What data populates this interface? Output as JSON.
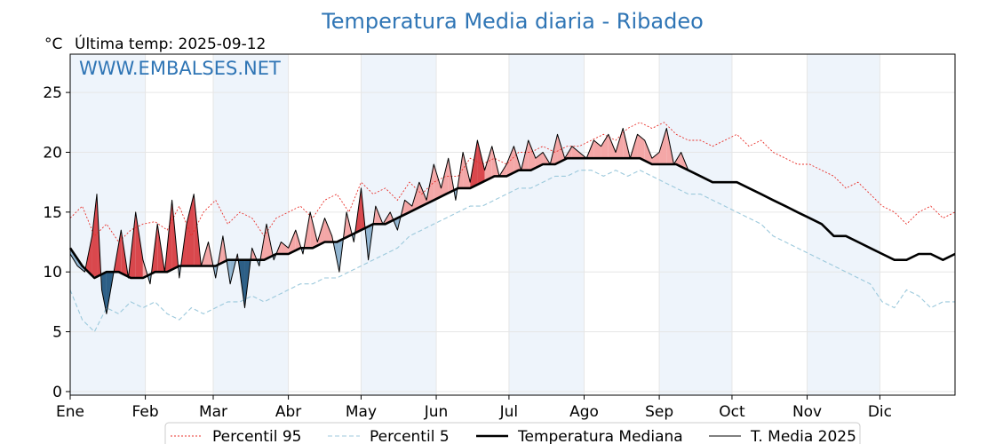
{
  "page": {
    "title": "Temperatura Media diaria - Ribadeo",
    "unit_label": "°C",
    "last_temp_label": "Última temp: 2025-09-12",
    "watermark": "WWW.EMBALSES.NET"
  },
  "colors": {
    "title": "#2f75b5",
    "percentile95": "#e8302a",
    "percentile5": "#9cc9dc",
    "median": "#000000",
    "mean2025": "#000000",
    "above_fill": "#f4a7a7",
    "above_fill_strong": "#d9484d",
    "below_fill": "#8fb3cf",
    "below_fill_strong": "#2d5f86",
    "band_fill": "#eef4fb"
  },
  "chart_data": {
    "type": "line",
    "title": "Temperatura Media diaria - Ribadeo",
    "ylabel": "°C",
    "ylim": [
      -0.3,
      28.2
    ],
    "yticks": [
      0,
      5,
      10,
      15,
      20,
      25
    ],
    "xlim": [
      0,
      365
    ],
    "months": [
      {
        "label": "Ene",
        "start": 0
      },
      {
        "label": "Feb",
        "start": 31
      },
      {
        "label": "Mar",
        "start": 59
      },
      {
        "label": "Abr",
        "start": 90
      },
      {
        "label": "May",
        "start": 120
      },
      {
        "label": "Jun",
        "start": 151
      },
      {
        "label": "Jul",
        "start": 181
      },
      {
        "label": "Ago",
        "start": 212
      },
      {
        "label": "Sep",
        "start": 243
      },
      {
        "label": "Oct",
        "start": 273
      },
      {
        "label": "Nov",
        "start": 304
      },
      {
        "label": "Dic",
        "start": 334
      }
    ],
    "shaded_bands": [
      [
        0,
        31
      ],
      [
        59,
        90
      ],
      [
        120,
        151
      ],
      [
        181,
        212
      ],
      [
        243,
        273
      ],
      [
        304,
        334
      ]
    ],
    "grid": true,
    "legend_position": "bottom-center",
    "series_legend": [
      {
        "name": "Percentil 95",
        "style": "dotted-red"
      },
      {
        "name": "Percentil 5",
        "style": "dashed-lightblue"
      },
      {
        "name": "Temperatura Mediana",
        "style": "solid-black-thick"
      },
      {
        "name": "T. Media 2025",
        "style": "solid-black-thin"
      }
    ],
    "series": [
      {
        "name": "Percentil 95",
        "x": [
          0,
          5,
          10,
          15,
          20,
          25,
          30,
          35,
          40,
          45,
          50,
          55,
          60,
          65,
          70,
          75,
          80,
          85,
          90,
          95,
          100,
          105,
          110,
          115,
          120,
          125,
          130,
          135,
          140,
          145,
          150,
          155,
          160,
          165,
          170,
          175,
          180,
          185,
          190,
          195,
          200,
          205,
          210,
          215,
          220,
          225,
          230,
          235,
          240,
          245,
          250,
          255,
          260,
          265,
          270,
          275,
          280,
          285,
          290,
          295,
          300,
          305,
          310,
          315,
          320,
          325,
          330,
          335,
          340,
          345,
          350,
          355,
          360,
          365
        ],
        "y": [
          14.5,
          15.5,
          13.0,
          14.0,
          12.5,
          13.5,
          14.0,
          14.2,
          13.5,
          15.5,
          13.0,
          15.0,
          16.0,
          14.0,
          15.0,
          14.5,
          13.0,
          14.5,
          15.0,
          15.5,
          14.5,
          16.0,
          16.5,
          15.0,
          17.5,
          16.5,
          17.0,
          16.0,
          17.5,
          16.5,
          17.5,
          18.0,
          18.0,
          19.5,
          19.0,
          19.5,
          19.0,
          20.0,
          20.0,
          20.5,
          20.0,
          20.5,
          20.5,
          21.0,
          21.5,
          21.0,
          22.0,
          22.5,
          22.0,
          22.5,
          21.5,
          21.0,
          21.0,
          20.5,
          21.0,
          21.5,
          20.5,
          21.0,
          20.0,
          19.5,
          19.0,
          19.0,
          18.5,
          18.0,
          17.0,
          17.5,
          16.5,
          15.5,
          15.0,
          14.0,
          15.0,
          15.5,
          14.5,
          15.0
        ]
      },
      {
        "name": "Percentil 5",
        "x": [
          0,
          5,
          10,
          15,
          20,
          25,
          30,
          35,
          40,
          45,
          50,
          55,
          60,
          65,
          70,
          75,
          80,
          85,
          90,
          95,
          100,
          105,
          110,
          115,
          120,
          125,
          130,
          135,
          140,
          145,
          150,
          155,
          160,
          165,
          170,
          175,
          180,
          185,
          190,
          195,
          200,
          205,
          210,
          215,
          220,
          225,
          230,
          235,
          240,
          245,
          250,
          255,
          260,
          265,
          270,
          275,
          280,
          285,
          290,
          295,
          300,
          305,
          310,
          315,
          320,
          325,
          330,
          335,
          340,
          345,
          350,
          355,
          360,
          365
        ],
        "y": [
          8.5,
          6.0,
          5.0,
          7.0,
          6.5,
          7.5,
          7.0,
          7.5,
          6.5,
          6.0,
          7.0,
          6.5,
          7.0,
          7.5,
          7.5,
          8.0,
          7.5,
          8.0,
          8.5,
          9.0,
          9.0,
          9.5,
          9.5,
          10.0,
          10.5,
          11.0,
          11.5,
          12.0,
          13.0,
          13.5,
          14.0,
          14.5,
          15.0,
          15.5,
          15.5,
          16.0,
          16.5,
          17.0,
          17.0,
          17.5,
          18.0,
          18.0,
          18.5,
          18.5,
          18.0,
          18.5,
          18.0,
          18.5,
          18.0,
          17.5,
          17.0,
          16.5,
          16.5,
          16.0,
          15.5,
          15.0,
          14.5,
          14.0,
          13.0,
          12.5,
          12.0,
          11.5,
          11.0,
          10.5,
          10.0,
          9.5,
          9.0,
          7.5,
          7.0,
          8.5,
          8.0,
          7.0,
          7.5,
          7.5
        ]
      },
      {
        "name": "Temperatura Mediana",
        "x": [
          0,
          5,
          10,
          15,
          20,
          25,
          30,
          35,
          40,
          45,
          50,
          55,
          60,
          65,
          70,
          75,
          80,
          85,
          90,
          95,
          100,
          105,
          110,
          115,
          120,
          125,
          130,
          135,
          140,
          145,
          150,
          155,
          160,
          165,
          170,
          175,
          180,
          185,
          190,
          195,
          200,
          205,
          210,
          215,
          220,
          225,
          230,
          235,
          240,
          245,
          250,
          255,
          260,
          265,
          270,
          275,
          280,
          285,
          290,
          295,
          300,
          305,
          310,
          315,
          320,
          325,
          330,
          335,
          340,
          345,
          350,
          355,
          360,
          365
        ],
        "y": [
          12.0,
          10.5,
          9.5,
          10.0,
          10.0,
          9.5,
          9.5,
          10.0,
          10.0,
          10.5,
          10.5,
          10.5,
          10.5,
          11.0,
          11.0,
          11.0,
          11.0,
          11.5,
          11.5,
          12.0,
          12.0,
          12.5,
          12.5,
          13.0,
          13.5,
          14.0,
          14.0,
          14.5,
          15.0,
          15.5,
          16.0,
          16.5,
          17.0,
          17.0,
          17.5,
          18.0,
          18.0,
          18.5,
          18.5,
          19.0,
          19.0,
          19.5,
          19.5,
          19.5,
          19.5,
          19.5,
          19.5,
          19.5,
          19.0,
          19.0,
          19.0,
          18.5,
          18.0,
          17.5,
          17.5,
          17.5,
          17.0,
          16.5,
          16.0,
          15.5,
          15.0,
          14.5,
          14.0,
          13.0,
          13.0,
          12.5,
          12.0,
          11.5,
          11.0,
          11.0,
          11.5,
          11.5,
          11.0,
          11.5
        ]
      },
      {
        "name": "T. Media 2025",
        "x": [
          0,
          3,
          6,
          9,
          11,
          13,
          15,
          18,
          21,
          24,
          27,
          30,
          33,
          36,
          39,
          42,
          45,
          48,
          51,
          54,
          57,
          60,
          63,
          66,
          69,
          72,
          75,
          78,
          81,
          84,
          87,
          90,
          93,
          96,
          99,
          102,
          105,
          108,
          111,
          114,
          117,
          120,
          123,
          126,
          129,
          132,
          135,
          138,
          141,
          144,
          147,
          150,
          153,
          156,
          159,
          162,
          165,
          168,
          171,
          174,
          177,
          180,
          183,
          186,
          189,
          192,
          195,
          198,
          201,
          204,
          207,
          210,
          213,
          216,
          219,
          222,
          225,
          228,
          231,
          234,
          237,
          240,
          243,
          246,
          249,
          252,
          255
        ],
        "y": [
          11.5,
          10.5,
          10.0,
          13.0,
          16.5,
          8.5,
          6.5,
          10.0,
          13.5,
          9.5,
          15.0,
          11.0,
          9.0,
          14.0,
          10.0,
          16.0,
          9.5,
          14.0,
          16.5,
          10.5,
          12.5,
          9.5,
          13.0,
          9.0,
          11.5,
          7.0,
          12.0,
          10.5,
          14.0,
          11.0,
          12.5,
          12.0,
          13.5,
          11.5,
          15.0,
          12.5,
          14.5,
          13.0,
          10.0,
          15.0,
          12.5,
          17.0,
          11.0,
          15.5,
          14.0,
          15.0,
          13.5,
          16.0,
          15.5,
          17.5,
          16.0,
          19.0,
          17.0,
          19.5,
          16.0,
          20.0,
          17.5,
          21.0,
          18.5,
          20.5,
          18.0,
          19.0,
          20.5,
          18.5,
          21.0,
          19.5,
          20.0,
          19.0,
          21.5,
          19.5,
          20.5,
          20.0,
          19.5,
          21.0,
          20.5,
          21.5,
          20.0,
          22.0,
          19.5,
          21.5,
          21.0,
          19.5,
          20.0,
          22.0,
          19.0,
          20.0,
          18.5
        ]
      }
    ]
  }
}
